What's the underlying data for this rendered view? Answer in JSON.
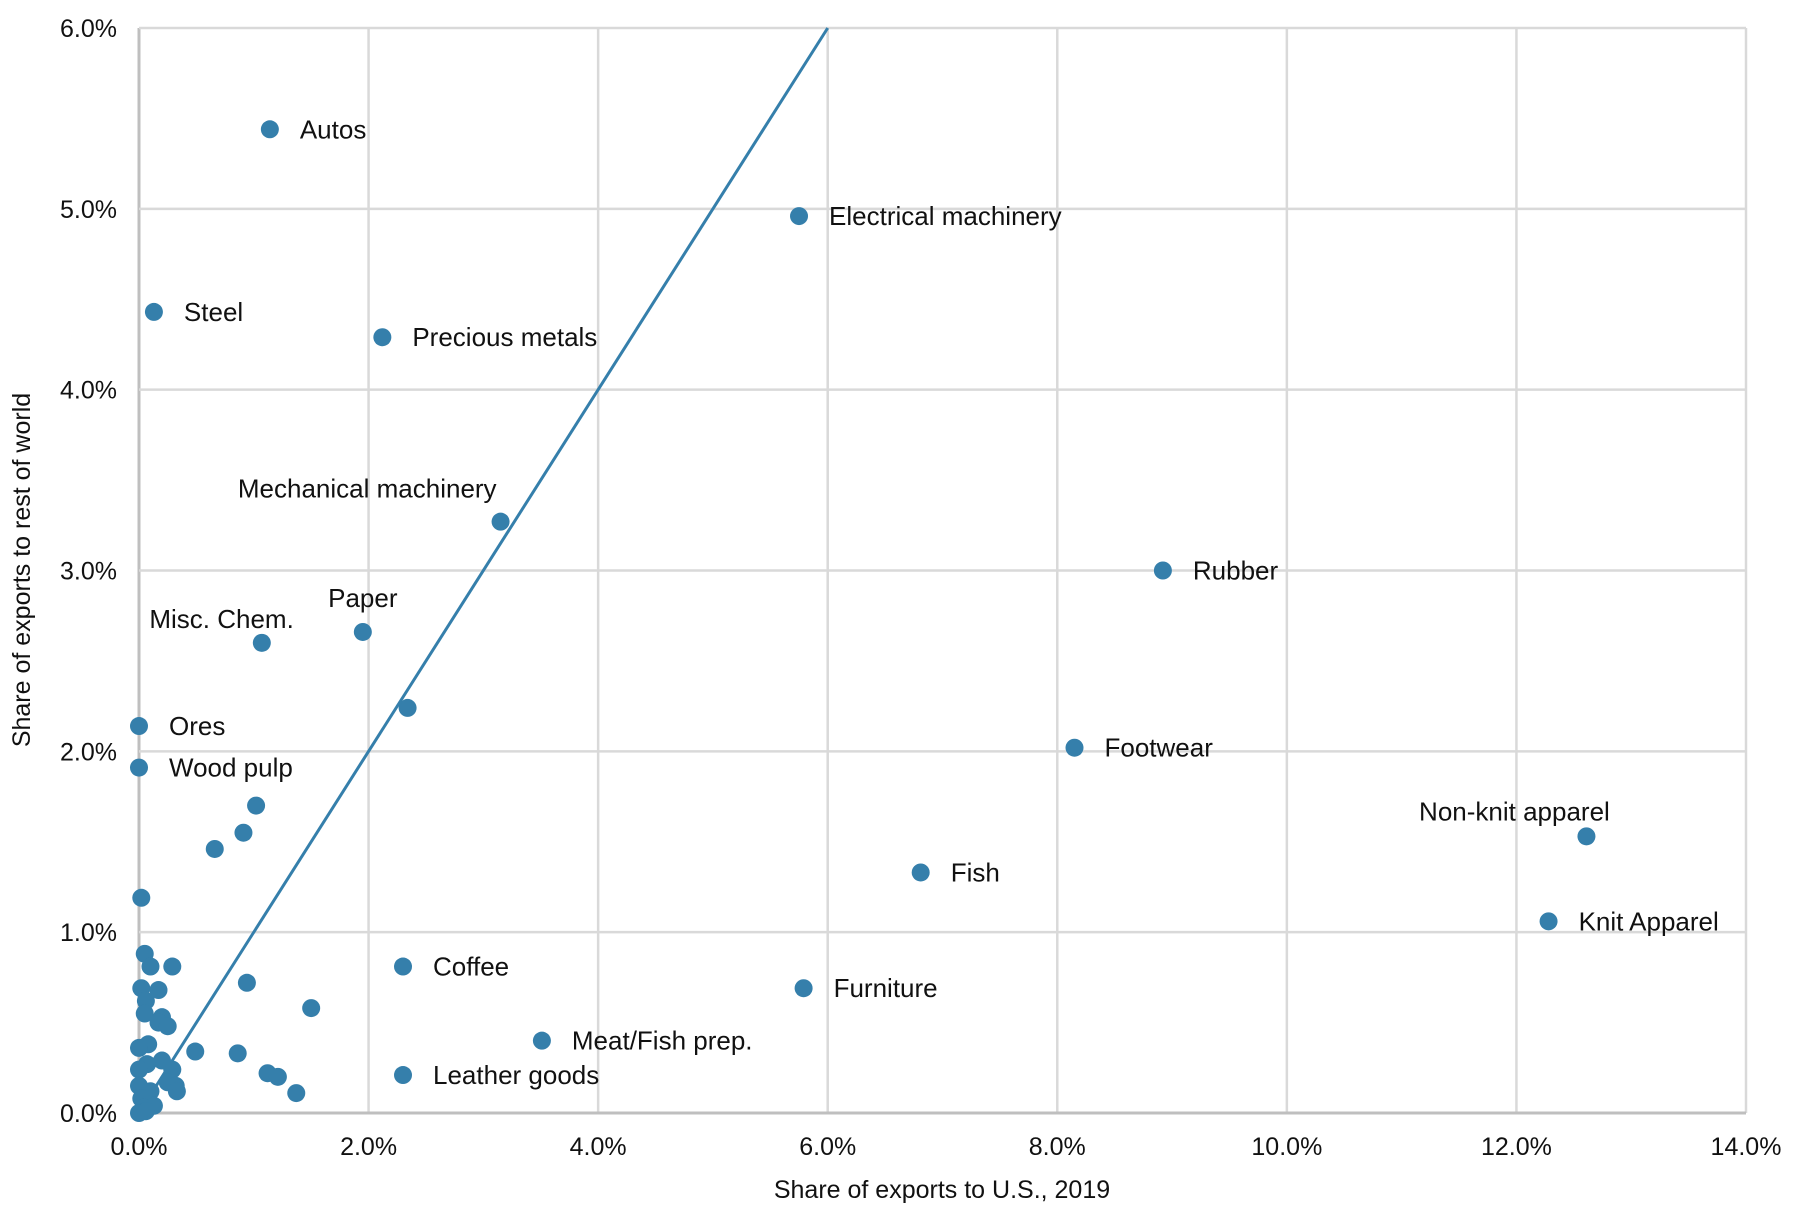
{
  "chart_data": {
    "type": "scatter",
    "title": "",
    "xlabel": "Share of exports to U.S., 2019",
    "ylabel": "Share of exports to rest of world",
    "xlim": [
      0,
      14
    ],
    "ylim": [
      0,
      6
    ],
    "grid": true,
    "x_ticks": [
      "0.0%",
      "2.0%",
      "4.0%",
      "6.0%",
      "8.0%",
      "10.0%",
      "12.0%",
      "14.0%"
    ],
    "y_ticks": [
      "0.0%",
      "1.0%",
      "2.0%",
      "3.0%",
      "4.0%",
      "5.0%",
      "6.0%"
    ],
    "x_tick_values": [
      0,
      2,
      4,
      6,
      8,
      10,
      12,
      14
    ],
    "y_tick_values": [
      0,
      1,
      2,
      3,
      4,
      5,
      6
    ],
    "reference_line": {
      "from": [
        0,
        0
      ],
      "to": [
        6,
        6
      ],
      "description": "45-degree line"
    },
    "colors": {
      "points": "#357fab",
      "line": "#357fab"
    },
    "points": [
      {
        "x": 1.14,
        "y": 5.44,
        "label": "Autos",
        "label_pos": "right"
      },
      {
        "x": 5.75,
        "y": 4.96,
        "label": "Electrical machinery",
        "label_pos": "right"
      },
      {
        "x": 0.13,
        "y": 4.43,
        "label": "Steel",
        "label_pos": "right"
      },
      {
        "x": 2.12,
        "y": 4.29,
        "label": "Precious metals",
        "label_pos": "right"
      },
      {
        "x": 3.15,
        "y": 3.27,
        "label": "Mechanical machinery",
        "label_pos": "above-left"
      },
      {
        "x": 8.92,
        "y": 3.0,
        "label": "Rubber",
        "label_pos": "right"
      },
      {
        "x": 1.95,
        "y": 2.66,
        "label": "Paper",
        "label_pos": "above"
      },
      {
        "x": 1.07,
        "y": 2.6,
        "label": "Misc. Chem.",
        "label_pos": "above-left"
      },
      {
        "x": 2.34,
        "y": 2.24,
        "label": "",
        "label_pos": "right"
      },
      {
        "x": 0.0,
        "y": 2.14,
        "label": "Ores",
        "label_pos": "right"
      },
      {
        "x": 0.0,
        "y": 1.91,
        "label": "Wood pulp",
        "label_pos": "right"
      },
      {
        "x": 8.15,
        "y": 2.02,
        "label": "Footwear",
        "label_pos": "right"
      },
      {
        "x": 12.61,
        "y": 1.53,
        "label": "Non-knit apparel",
        "label_pos": "above"
      },
      {
        "x": 6.81,
        "y": 1.33,
        "label": "Fish",
        "label_pos": "right"
      },
      {
        "x": 12.28,
        "y": 1.06,
        "label": "Knit Apparel",
        "label_pos": "right"
      },
      {
        "x": 2.3,
        "y": 0.81,
        "label": "Coffee",
        "label_pos": "right"
      },
      {
        "x": 5.79,
        "y": 0.69,
        "label": "Furniture",
        "label_pos": "right"
      },
      {
        "x": 3.51,
        "y": 0.4,
        "label": "Meat/Fish prep.",
        "label_pos": "right"
      },
      {
        "x": 2.3,
        "y": 0.21,
        "label": "Leather goods",
        "label_pos": "right"
      },
      {
        "x": 1.02,
        "y": 1.7
      },
      {
        "x": 0.91,
        "y": 1.55
      },
      {
        "x": 0.66,
        "y": 1.46
      },
      {
        "x": 0.02,
        "y": 1.19
      },
      {
        "x": 0.05,
        "y": 0.88
      },
      {
        "x": 0.29,
        "y": 0.81
      },
      {
        "x": 0.1,
        "y": 0.81
      },
      {
        "x": 0.94,
        "y": 0.72
      },
      {
        "x": 0.02,
        "y": 0.69
      },
      {
        "x": 0.17,
        "y": 0.68
      },
      {
        "x": 0.06,
        "y": 0.62
      },
      {
        "x": 1.5,
        "y": 0.58
      },
      {
        "x": 0.05,
        "y": 0.55
      },
      {
        "x": 0.2,
        "y": 0.53
      },
      {
        "x": 0.17,
        "y": 0.5
      },
      {
        "x": 0.25,
        "y": 0.48
      },
      {
        "x": 0.08,
        "y": 0.38
      },
      {
        "x": 0.0,
        "y": 0.36
      },
      {
        "x": 0.49,
        "y": 0.34
      },
      {
        "x": 0.86,
        "y": 0.33
      },
      {
        "x": 0.2,
        "y": 0.29
      },
      {
        "x": 0.07,
        "y": 0.27
      },
      {
        "x": 0.29,
        "y": 0.24
      },
      {
        "x": 0.0,
        "y": 0.24
      },
      {
        "x": 1.12,
        "y": 0.22
      },
      {
        "x": 1.21,
        "y": 0.2
      },
      {
        "x": 0.25,
        "y": 0.17
      },
      {
        "x": 0.32,
        "y": 0.15
      },
      {
        "x": 0.0,
        "y": 0.15
      },
      {
        "x": 0.33,
        "y": 0.12
      },
      {
        "x": 1.37,
        "y": 0.11
      },
      {
        "x": 0.1,
        "y": 0.12
      },
      {
        "x": 0.02,
        "y": 0.08
      },
      {
        "x": 0.13,
        "y": 0.04
      },
      {
        "x": 0.04,
        "y": 0.03
      },
      {
        "x": 0.0,
        "y": 0.0
      },
      {
        "x": 0.06,
        "y": 0.01
      }
    ]
  }
}
